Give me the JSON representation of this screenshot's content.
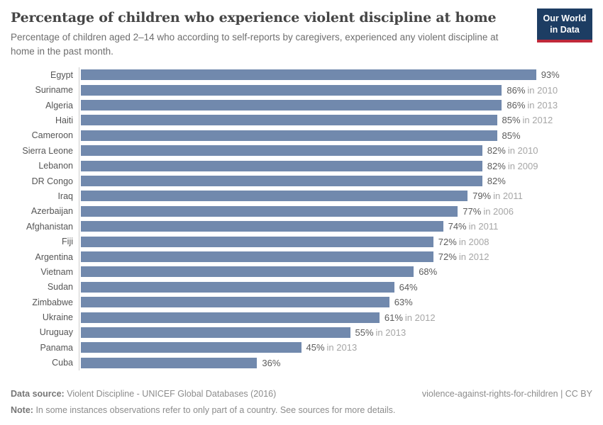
{
  "header": {
    "logo": {
      "line1": "Our World",
      "line2": "in Data"
    }
  },
  "chart_data": {
    "type": "bar",
    "orientation": "horizontal",
    "title": "Percentage of children who experience violent discipline at home",
    "subtitle": "Percentage of children aged 2–14 who according to self-reports by caregivers, experienced any violent discipline at home in the past month.",
    "unit": "%",
    "xlim": [
      0,
      100
    ],
    "grid": false,
    "legend": "none",
    "bar_color": "#7189ad",
    "axis_color": "#cccccc",
    "rows": [
      {
        "label": "Egypt",
        "value": 93,
        "year_note": ""
      },
      {
        "label": "Suriname",
        "value": 86,
        "year_note": "in 2010"
      },
      {
        "label": "Algeria",
        "value": 86,
        "year_note": "in 2013"
      },
      {
        "label": "Haiti",
        "value": 85,
        "year_note": "in 2012"
      },
      {
        "label": "Cameroon",
        "value": 85,
        "year_note": ""
      },
      {
        "label": "Sierra Leone",
        "value": 82,
        "year_note": "in 2010"
      },
      {
        "label": "Lebanon",
        "value": 82,
        "year_note": "in 2009"
      },
      {
        "label": "DR Congo",
        "value": 82,
        "year_note": ""
      },
      {
        "label": "Iraq",
        "value": 79,
        "year_note": "in 2011"
      },
      {
        "label": "Azerbaijan",
        "value": 77,
        "year_note": "in 2006"
      },
      {
        "label": "Afghanistan",
        "value": 74,
        "year_note": "in 2011"
      },
      {
        "label": "Fiji",
        "value": 72,
        "year_note": "in 2008"
      },
      {
        "label": "Argentina",
        "value": 72,
        "year_note": "in 2012"
      },
      {
        "label": "Vietnam",
        "value": 68,
        "year_note": ""
      },
      {
        "label": "Sudan",
        "value": 64,
        "year_note": ""
      },
      {
        "label": "Zimbabwe",
        "value": 63,
        "year_note": ""
      },
      {
        "label": "Ukraine",
        "value": 61,
        "year_note": "in 2012"
      },
      {
        "label": "Uruguay",
        "value": 55,
        "year_note": "in 2013"
      },
      {
        "label": "Panama",
        "value": 45,
        "year_note": "in 2013"
      },
      {
        "label": "Cuba",
        "value": 36,
        "year_note": ""
      }
    ]
  },
  "footer": {
    "datasource_label": "Data source:",
    "datasource_value": "Violent Discipline - UNICEF Global Databases (2016)",
    "rights": "violence-against-rights-for-children | CC BY",
    "note_label": "Note:",
    "note_value": "In some instances observations refer to only part of a country. See sources for more details."
  },
  "colors": {
    "bar": "#7189ad",
    "axis": "#cccccc",
    "logo_bg": "#1d3d63",
    "logo_accent": "#c0293a"
  }
}
